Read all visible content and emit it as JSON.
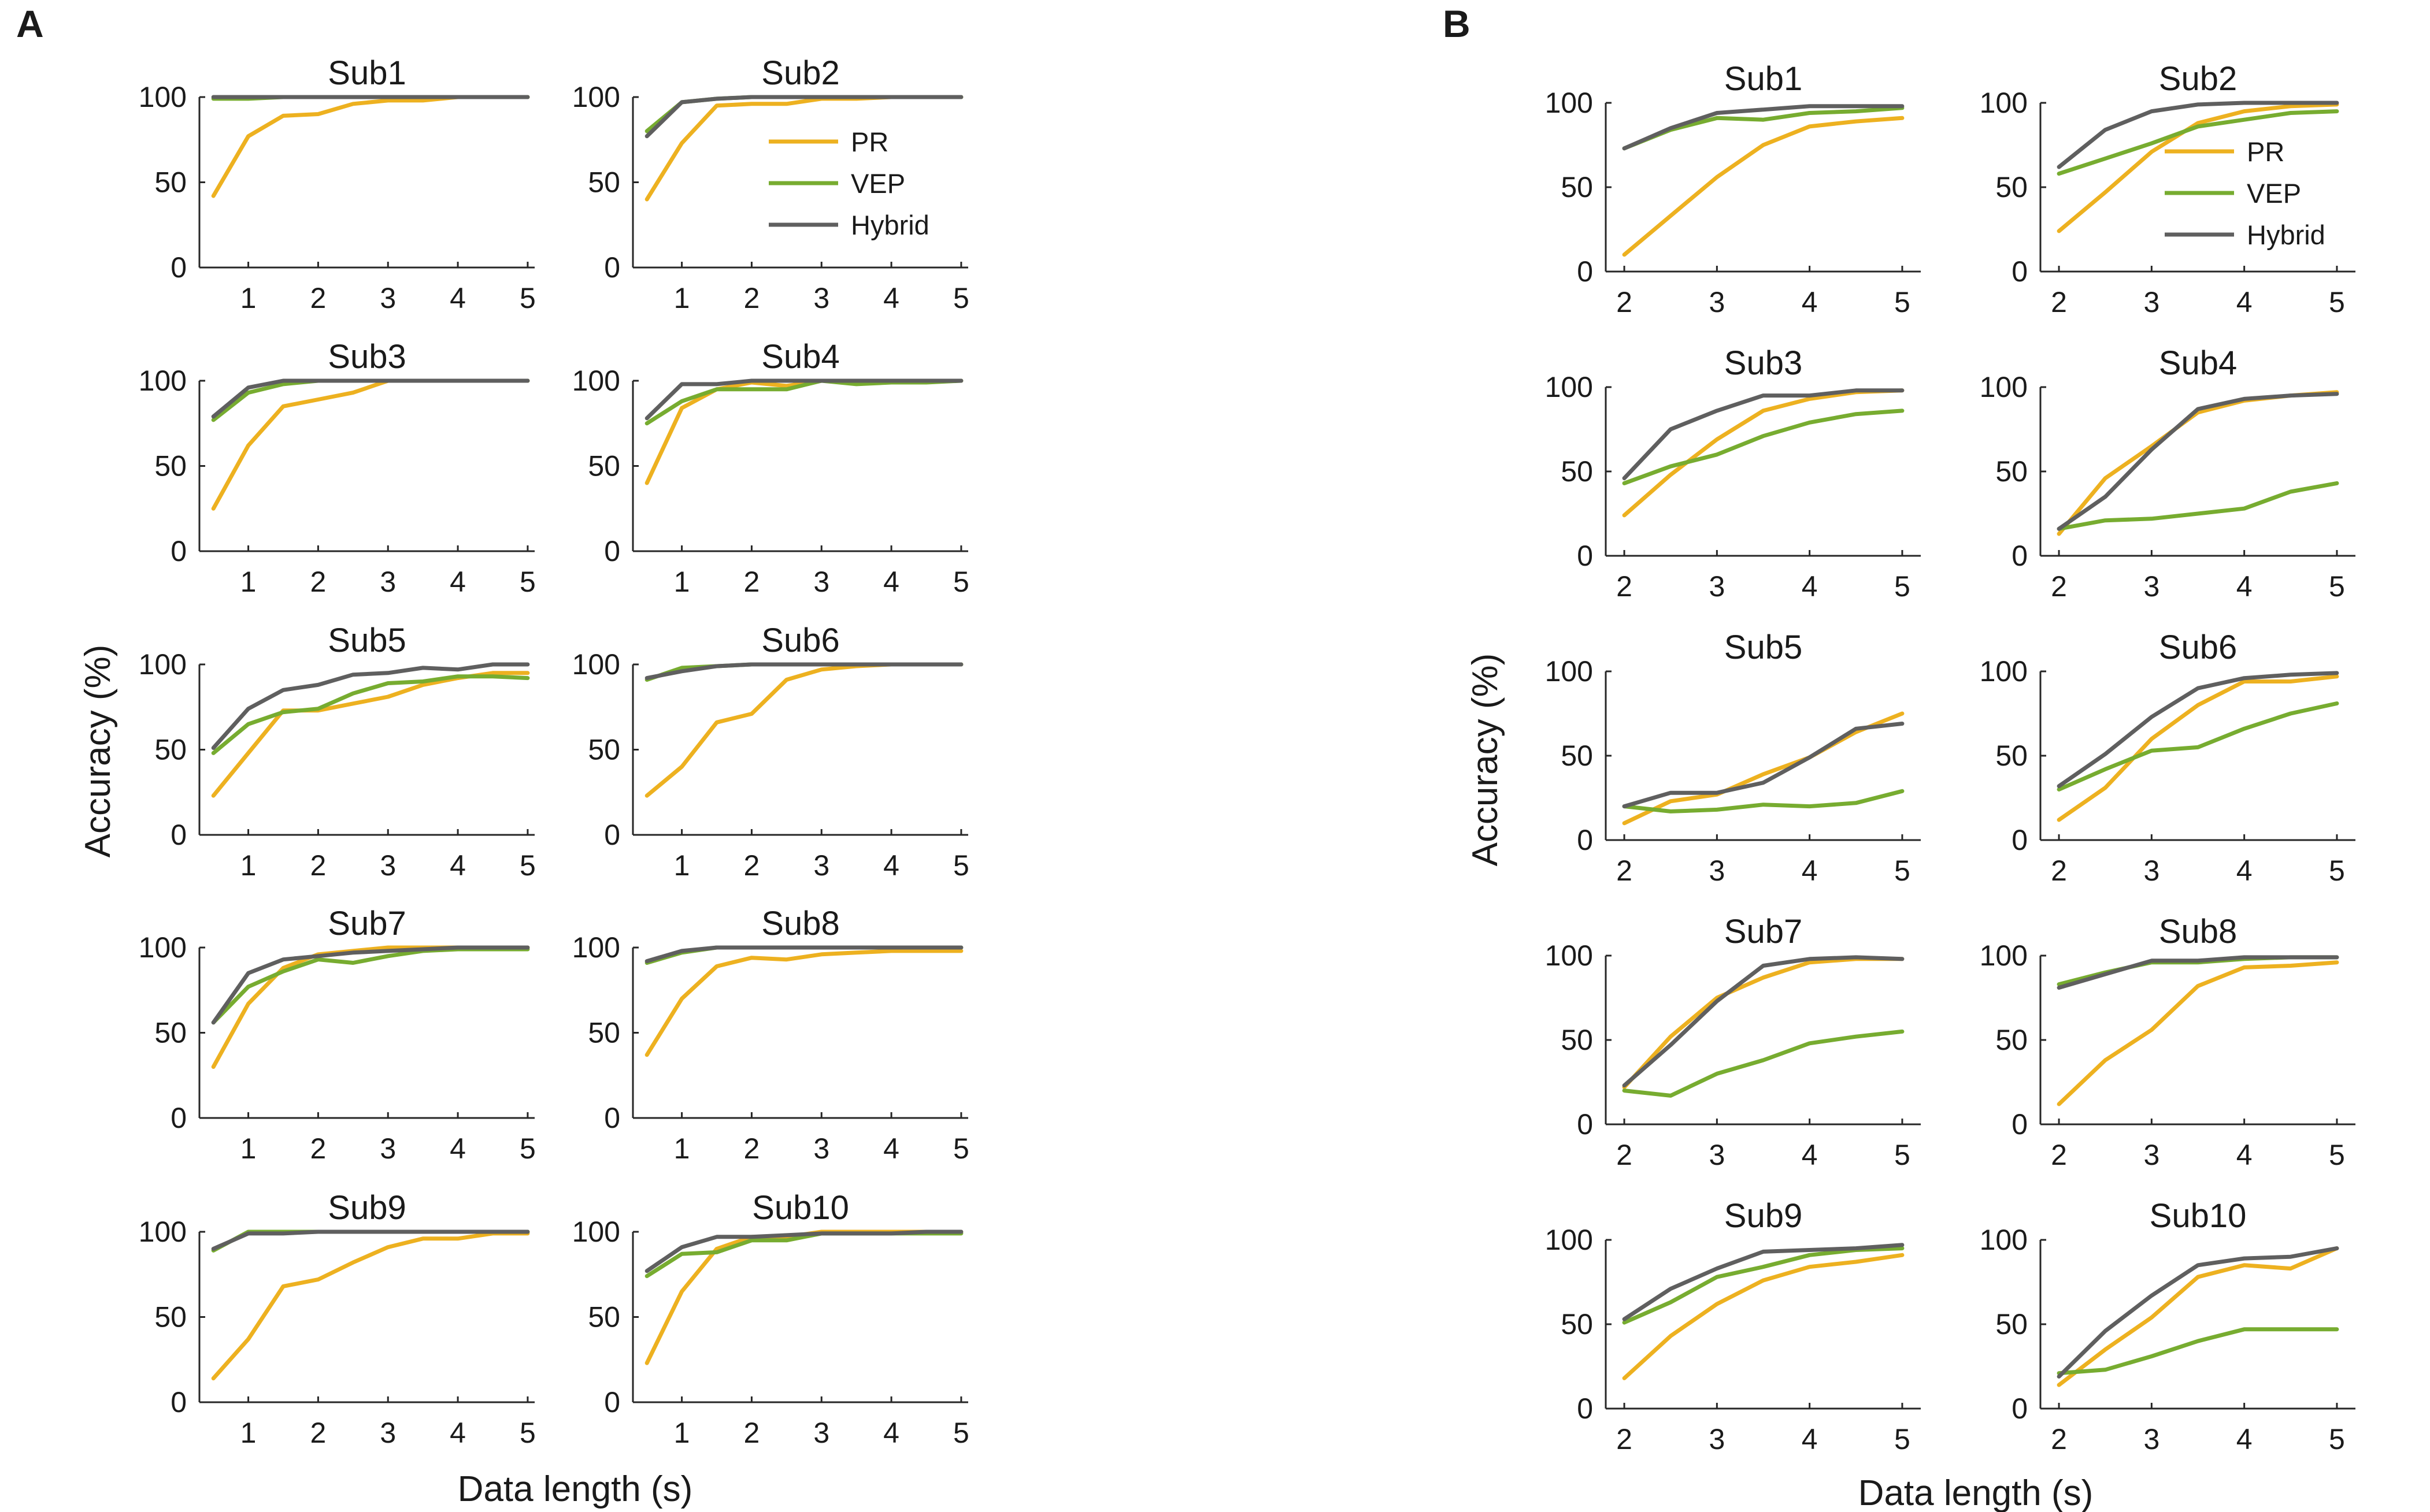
{
  "colors": {
    "PR": "#EDB120",
    "VEP": "#77AC30",
    "Hybrid": "#5F5F5F",
    "axis": "#262626"
  },
  "panels": [
    {
      "label": "A",
      "xlabel": "Data length (s)",
      "ylabel": "Accuracy (%)"
    },
    {
      "label": "B",
      "xlabel": "Data length (s)",
      "ylabel": "Accuracy (%)"
    }
  ],
  "chart_data": [
    {
      "panel": "A",
      "type": "line",
      "xlabel": "Data length (s)",
      "ylabel": "Accuracy (%)",
      "xlim": [
        0.3,
        5.1
      ],
      "ylim": [
        0,
        100
      ],
      "xticks": [
        "1",
        "2",
        "3",
        "4",
        "5"
      ],
      "yticks": [
        "0",
        "50",
        "100"
      ],
      "x": [
        0.5,
        1,
        1.5,
        2,
        2.5,
        3,
        3.5,
        4,
        4.5,
        5
      ],
      "legend": {
        "entries": [
          "PR",
          "VEP",
          "Hybrid"
        ],
        "location": "subplot Sub2, top-right"
      },
      "subplots": [
        {
          "title": "Sub1",
          "series": [
            {
              "name": "PR",
              "values": [
                42,
                77,
                89,
                90,
                96,
                98,
                98,
                100,
                100,
                100
              ]
            },
            {
              "name": "VEP",
              "values": [
                99,
                99,
                100,
                100,
                100,
                100,
                100,
                100,
                100,
                100
              ]
            },
            {
              "name": "Hybrid",
              "values": [
                100,
                100,
                100,
                100,
                100,
                100,
                100,
                100,
                100,
                100
              ]
            }
          ]
        },
        {
          "title": "Sub2",
          "series": [
            {
              "name": "PR",
              "values": [
                40,
                73,
                95,
                96,
                96,
                99,
                99,
                100,
                100,
                100
              ]
            },
            {
              "name": "VEP",
              "values": [
                80,
                97,
                99,
                100,
                100,
                100,
                100,
                100,
                100,
                100
              ]
            },
            {
              "name": "Hybrid",
              "values": [
                77,
                97,
                99,
                100,
                100,
                100,
                100,
                100,
                100,
                100
              ]
            }
          ]
        },
        {
          "title": "Sub3",
          "series": [
            {
              "name": "PR",
              "values": [
                25,
                62,
                85,
                89,
                93,
                100,
                100,
                100,
                100,
                100
              ]
            },
            {
              "name": "VEP",
              "values": [
                77,
                93,
                98,
                100,
                100,
                100,
                100,
                100,
                100,
                100
              ]
            },
            {
              "name": "Hybrid",
              "values": [
                79,
                96,
                100,
                100,
                100,
                100,
                100,
                100,
                100,
                100
              ]
            }
          ]
        },
        {
          "title": "Sub4",
          "series": [
            {
              "name": "PR",
              "values": [
                40,
                84,
                95,
                99,
                97,
                100,
                100,
                100,
                100,
                100
              ]
            },
            {
              "name": "VEP",
              "values": [
                75,
                88,
                95,
                95,
                95,
                100,
                98,
                99,
                99,
                100
              ]
            },
            {
              "name": "Hybrid",
              "values": [
                78,
                98,
                98,
                100,
                100,
                100,
                100,
                100,
                100,
                100
              ]
            }
          ]
        },
        {
          "title": "Sub5",
          "series": [
            {
              "name": "PR",
              "values": [
                23,
                48,
                73,
                73,
                77,
                81,
                88,
                92,
                95,
                95
              ]
            },
            {
              "name": "VEP",
              "values": [
                48,
                65,
                72,
                74,
                83,
                89,
                90,
                93,
                93,
                92
              ]
            },
            {
              "name": "Hybrid",
              "values": [
                51,
                74,
                85,
                88,
                94,
                95,
                98,
                97,
                100,
                100
              ]
            }
          ]
        },
        {
          "title": "Sub6",
          "series": [
            {
              "name": "PR",
              "values": [
                23,
                40,
                66,
                71,
                91,
                97,
                99,
                100,
                100,
                100
              ]
            },
            {
              "name": "VEP",
              "values": [
                91,
                98,
                99,
                100,
                100,
                100,
                100,
                100,
                100,
                100
              ]
            },
            {
              "name": "Hybrid",
              "values": [
                92,
                96,
                99,
                100,
                100,
                100,
                100,
                100,
                100,
                100
              ]
            }
          ]
        },
        {
          "title": "Sub7",
          "series": [
            {
              "name": "PR",
              "values": [
                30,
                67,
                88,
                96,
                98,
                100,
                100,
                100,
                100,
                100
              ]
            },
            {
              "name": "VEP",
              "values": [
                56,
                77,
                86,
                93,
                91,
                95,
                98,
                99,
                99,
                99
              ]
            },
            {
              "name": "Hybrid",
              "values": [
                56,
                85,
                93,
                95,
                97,
                98,
                99,
                100,
                100,
                100
              ]
            }
          ]
        },
        {
          "title": "Sub8",
          "series": [
            {
              "name": "PR",
              "values": [
                37,
                70,
                89,
                94,
                93,
                96,
                97,
                98,
                98,
                98
              ]
            },
            {
              "name": "VEP",
              "values": [
                91,
                97,
                100,
                100,
                100,
                100,
                100,
                100,
                100,
                100
              ]
            },
            {
              "name": "Hybrid",
              "values": [
                92,
                98,
                100,
                100,
                100,
                100,
                100,
                100,
                100,
                100
              ]
            }
          ]
        },
        {
          "title": "Sub9",
          "series": [
            {
              "name": "PR",
              "values": [
                14,
                37,
                68,
                72,
                82,
                91,
                96,
                96,
                99,
                99
              ]
            },
            {
              "name": "VEP",
              "values": [
                89,
                100,
                100,
                100,
                100,
                100,
                100,
                100,
                100,
                100
              ]
            },
            {
              "name": "Hybrid",
              "values": [
                90,
                99,
                99,
                100,
                100,
                100,
                100,
                100,
                100,
                100
              ]
            }
          ]
        },
        {
          "title": "Sub10",
          "series": [
            {
              "name": "PR",
              "values": [
                23,
                65,
                90,
                97,
                97,
                100,
                100,
                100,
                100,
                100
              ]
            },
            {
              "name": "VEP",
              "values": [
                74,
                87,
                88,
                95,
                95,
                99,
                99,
                99,
                99,
                99
              ]
            },
            {
              "name": "Hybrid",
              "values": [
                77,
                91,
                97,
                97,
                98,
                99,
                99,
                99,
                100,
                100
              ]
            }
          ]
        }
      ]
    },
    {
      "panel": "B",
      "type": "line",
      "xlabel": "Data length (s)",
      "ylabel": "Accuracy (%)",
      "xlim": [
        1.8,
        5.2
      ],
      "ylim": [
        0,
        100
      ],
      "xticks": [
        "2",
        "3",
        "4",
        "5"
      ],
      "yticks": [
        "0",
        "50",
        "100"
      ],
      "x": [
        2,
        2.5,
        3,
        3.5,
        4,
        4.5,
        5
      ],
      "legend": {
        "entries": [
          "PR",
          "VEP",
          "Hybrid"
        ],
        "location": "subplot Sub2, right"
      },
      "subplots": [
        {
          "title": "Sub1",
          "series": [
            {
              "name": "PR",
              "values": [
                10,
                33,
                56,
                75,
                86,
                89,
                91
              ]
            },
            {
              "name": "VEP",
              "values": [
                73,
                84,
                91,
                90,
                94,
                95,
                97
              ]
            },
            {
              "name": "Hybrid",
              "values": [
                73,
                85,
                94,
                96,
                98,
                98,
                98
              ]
            }
          ]
        },
        {
          "title": "Sub2",
          "series": [
            {
              "name": "PR",
              "values": [
                24,
                47,
                71,
                88,
                95,
                98,
                99
              ]
            },
            {
              "name": "VEP",
              "values": [
                58,
                67,
                76,
                86,
                90,
                94,
                95
              ]
            },
            {
              "name": "Hybrid",
              "values": [
                62,
                84,
                95,
                99,
                100,
                100,
                100
              ]
            }
          ]
        },
        {
          "title": "Sub3",
          "series": [
            {
              "name": "PR",
              "values": [
                24,
                48,
                69,
                86,
                93,
                97,
                98
              ]
            },
            {
              "name": "VEP",
              "values": [
                43,
                53,
                60,
                71,
                79,
                84,
                86
              ]
            },
            {
              "name": "Hybrid",
              "values": [
                46,
                75,
                86,
                95,
                95,
                98,
                98
              ]
            }
          ]
        },
        {
          "title": "Sub4",
          "series": [
            {
              "name": "PR",
              "values": [
                13,
                46,
                65,
                85,
                92,
                95,
                97
              ]
            },
            {
              "name": "VEP",
              "values": [
                16,
                21,
                22,
                25,
                28,
                38,
                43
              ]
            },
            {
              "name": "Hybrid",
              "values": [
                16,
                35,
                63,
                87,
                93,
                95,
                96
              ]
            }
          ]
        },
        {
          "title": "Sub5",
          "series": [
            {
              "name": "PR",
              "values": [
                10,
                23,
                27,
                39,
                49,
                64,
                75
              ]
            },
            {
              "name": "VEP",
              "values": [
                20,
                17,
                18,
                21,
                20,
                22,
                29
              ]
            },
            {
              "name": "Hybrid",
              "values": [
                20,
                28,
                28,
                34,
                49,
                66,
                69
              ]
            }
          ]
        },
        {
          "title": "Sub6",
          "series": [
            {
              "name": "PR",
              "values": [
                12,
                31,
                60,
                80,
                94,
                94,
                97
              ]
            },
            {
              "name": "VEP",
              "values": [
                30,
                42,
                53,
                55,
                66,
                75,
                81
              ]
            },
            {
              "name": "Hybrid",
              "values": [
                32,
                51,
                73,
                90,
                96,
                98,
                99
              ]
            }
          ]
        },
        {
          "title": "Sub7",
          "series": [
            {
              "name": "PR",
              "values": [
                22,
                52,
                75,
                87,
                96,
                98,
                98
              ]
            },
            {
              "name": "VEP",
              "values": [
                20,
                17,
                30,
                38,
                48,
                52,
                55
              ]
            },
            {
              "name": "Hybrid",
              "values": [
                23,
                47,
                73,
                94,
                98,
                99,
                98
              ]
            }
          ]
        },
        {
          "title": "Sub8",
          "series": [
            {
              "name": "PR",
              "values": [
                12,
                38,
                56,
                82,
                93,
                94,
                96
              ]
            },
            {
              "name": "VEP",
              "values": [
                83,
                90,
                96,
                96,
                98,
                99,
                99
              ]
            },
            {
              "name": "Hybrid",
              "values": [
                81,
                89,
                97,
                97,
                99,
                99,
                99
              ]
            }
          ]
        },
        {
          "title": "Sub9",
          "series": [
            {
              "name": "PR",
              "values": [
                18,
                43,
                62,
                76,
                84,
                87,
                91
              ]
            },
            {
              "name": "VEP",
              "values": [
                51,
                63,
                78,
                84,
                91,
                94,
                95
              ]
            },
            {
              "name": "Hybrid",
              "values": [
                53,
                71,
                83,
                93,
                94,
                95,
                97
              ]
            }
          ]
        },
        {
          "title": "Sub10",
          "series": [
            {
              "name": "PR",
              "values": [
                14,
                35,
                54,
                78,
                85,
                83,
                95
              ]
            },
            {
              "name": "VEP",
              "values": [
                21,
                23,
                31,
                40,
                47,
                47,
                47
              ]
            },
            {
              "name": "Hybrid",
              "values": [
                19,
                46,
                67,
                85,
                89,
                90,
                95
              ]
            }
          ]
        }
      ]
    }
  ]
}
